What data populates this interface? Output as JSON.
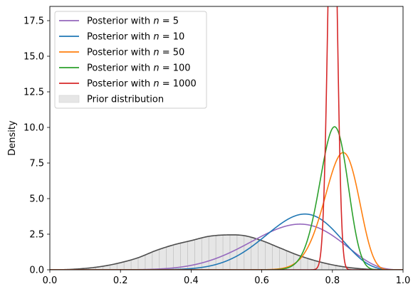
{
  "chart_data": {
    "type": "line",
    "ylabel": "Density",
    "xlabel": "",
    "xlim": [
      0.0,
      1.0
    ],
    "ylim": [
      0.0,
      18.5
    ],
    "x_ticks": [
      "0.0",
      "0.2",
      "0.4",
      "0.6",
      "0.8",
      "1.0"
    ],
    "y_ticks": [
      "0.0",
      "2.5",
      "5.0",
      "7.5",
      "10.0",
      "12.5",
      "15.0",
      "17.5"
    ],
    "legend_position": "top-left",
    "grid": false,
    "series": [
      {
        "name": "Posterior with n = 5",
        "color": "#9467bd",
        "distribution": "beta",
        "alpha": 9.5,
        "beta": 4.5
      },
      {
        "name": "Posterior with n = 10",
        "color": "#1f77b4",
        "distribution": "beta",
        "alpha": 14.0,
        "beta": 6.0
      },
      {
        "name": "Posterior with n = 50",
        "color": "#ff7f0e",
        "distribution": "beta",
        "alpha": 50.0,
        "beta": 11.0
      },
      {
        "name": "Posterior with n = 100",
        "color": "#2ca02c",
        "distribution": "beta",
        "alpha": 80.0,
        "beta": 20.0
      },
      {
        "name": "Posterior with n = 1000",
        "color": "#d62728",
        "distribution": "beta",
        "alpha": 800.0,
        "beta": 200.0
      }
    ],
    "prior": {
      "name": "Prior distribution",
      "fill_color": "#e6e6e6",
      "line_color": "#4d4d4d",
      "hatch_color": "#bdbdbd",
      "x": [
        0.0,
        0.05,
        0.1,
        0.15,
        0.2,
        0.25,
        0.3,
        0.35,
        0.4,
        0.45,
        0.5,
        0.55,
        0.6,
        0.65,
        0.7,
        0.75,
        0.8,
        0.85,
        0.9,
        0.95,
        1.0
      ],
      "values": [
        0.0,
        0.02,
        0.1,
        0.25,
        0.5,
        0.85,
        1.35,
        1.75,
        2.05,
        2.35,
        2.45,
        2.4,
        2.05,
        1.55,
        1.05,
        0.65,
        0.35,
        0.15,
        0.04,
        0.01,
        0.0
      ]
    },
    "legend_entries": [
      {
        "prefix": "Posterior with ",
        "var": "n",
        "suffix": " = 5",
        "color": "#9467bd",
        "kind": "line"
      },
      {
        "prefix": "Posterior with ",
        "var": "n",
        "suffix": " = 10",
        "color": "#1f77b4",
        "kind": "line"
      },
      {
        "prefix": "Posterior with ",
        "var": "n",
        "suffix": " = 50",
        "color": "#ff7f0e",
        "kind": "line"
      },
      {
        "prefix": "Posterior with ",
        "var": "n",
        "suffix": " = 100",
        "color": "#2ca02c",
        "kind": "line"
      },
      {
        "prefix": "Posterior with ",
        "var": "n",
        "suffix": " = 1000",
        "color": "#d62728",
        "kind": "line"
      },
      {
        "prefix": "Prior distribution",
        "var": "",
        "suffix": "",
        "color": "#e6e6e6",
        "kind": "patch"
      }
    ]
  }
}
